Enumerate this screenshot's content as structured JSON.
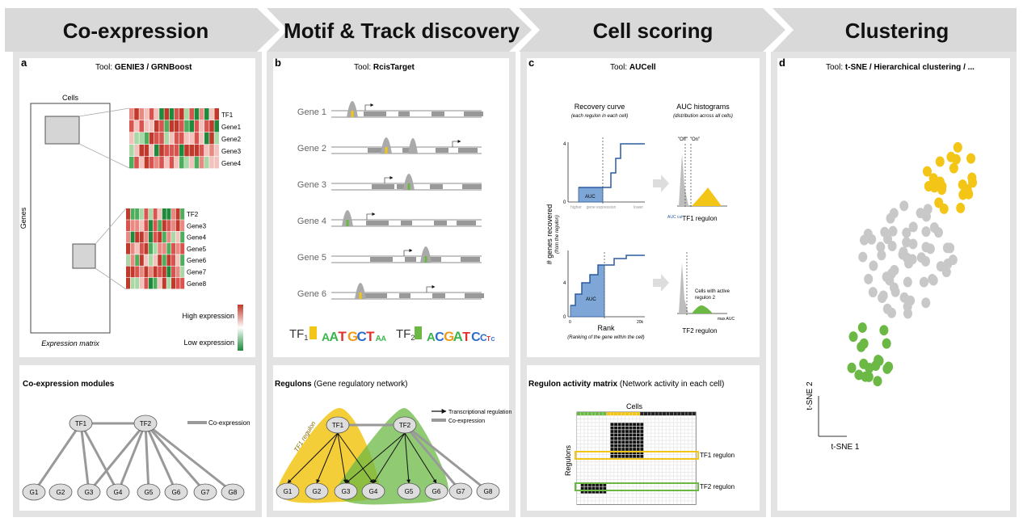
{
  "stages": {
    "coexpression": "Co-expression",
    "motif": "Motif & Track discovery",
    "scoring": "Cell scoring",
    "clustering": "Clustering"
  },
  "panel_a": {
    "letter": "a",
    "tool_prefix": "Tool:",
    "tool_name": "GENIE3 / GRNBoost",
    "cells_label": "Cells",
    "genes_label": "Genes",
    "matrix_caption": "Expression matrix",
    "heatmap1_rows": [
      "TF1",
      "Gene1",
      "Gene2",
      "Gene3",
      "Gene4"
    ],
    "heatmap2_rows": [
      "TF2",
      "Gene3",
      "Gene4",
      "Gene5",
      "Gene6",
      "Gene7",
      "Gene8"
    ],
    "legend_high": "High expression",
    "legend_low": "Low expression",
    "colors": {
      "high": "#c0392b",
      "low": "#1e8a3c"
    }
  },
  "panel_b": {
    "letter": "b",
    "tool_prefix": "Tool:",
    "tool_name": "RcisTarget",
    "genes": [
      "Gene 1",
      "Gene 2",
      "Gene 3",
      "Gene 4",
      "Gene 5",
      "Gene 6"
    ],
    "tf1_label": "TF",
    "tf1_sub": "1",
    "tf1_motif": [
      "A",
      "A",
      "T",
      "G",
      "C",
      "T",
      "A",
      "A"
    ],
    "tf2_label": "TF",
    "tf2_sub": "2",
    "tf2_motif": [
      "A",
      "C",
      "G",
      "A",
      "T",
      "C",
      "C",
      "T",
      "C"
    ]
  },
  "panel_c": {
    "letter": "c",
    "tool_prefix": "Tool:",
    "tool_name": "AUCell",
    "recovery_title": "Recovery curve",
    "recovery_sub": "(each regulon in each cell)",
    "hist_title": "AUC histograms",
    "hist_sub": "(distribution across all cells)",
    "y_axis": "# genes recovered",
    "y_axis_sub": "(from the regulon)",
    "auc": "AUC",
    "higher": "higher",
    "gene_expression": "gene expression",
    "lower": "lower",
    "off": "\"Off\"",
    "on": "\"On\"",
    "tf1_regulon": "TF1 regulon",
    "tf2_regulon": "TF2 regulon",
    "cells_active": "Cells with active",
    "regulon2": "regulon 2",
    "rank": "Rank",
    "rank_sub": "(Ranking of the gene within the cell)",
    "tick_0": "0",
    "tick_20k": "20k",
    "tick_4": "4",
    "max_auc": "max AUC",
    "auc_cut": "AUC cut"
  },
  "panel_d": {
    "letter": "d",
    "tool_prefix": "Tool:",
    "tool_name": "t-SNE / Hierarchical clustering / ...",
    "tsne1": "t-SNE 1",
    "tsne2": "t-SNE 2",
    "colors": {
      "yellow": "#f2c516",
      "gray": "#c8c8c8",
      "green": "#6bb844"
    }
  },
  "bottom": {
    "coexp_title": "Co-expression modules",
    "coexp_legend": "Co-expression",
    "regulons_title": "Regulons",
    "regulons_sub": "(Gene regulatory network)",
    "legend_transcriptional": "Transcriptional regulation",
    "legend_coexpression": "Co-expression",
    "tf1_regulon_curve": "TF1 regulon",
    "activity_title": "Regulon activity matrix",
    "activity_sub": "(Network activity in each cell)",
    "cells": "Cells",
    "regulons_axis": "Regulons",
    "tf1_regulon": "TF1 regulon",
    "tf2_regulon": "TF2 regulon",
    "tf1_node": "TF1",
    "tf2_node": "TF2",
    "gene_nodes": [
      "G1",
      "G2",
      "G3",
      "G4",
      "G5",
      "G6",
      "G7",
      "G8"
    ]
  }
}
